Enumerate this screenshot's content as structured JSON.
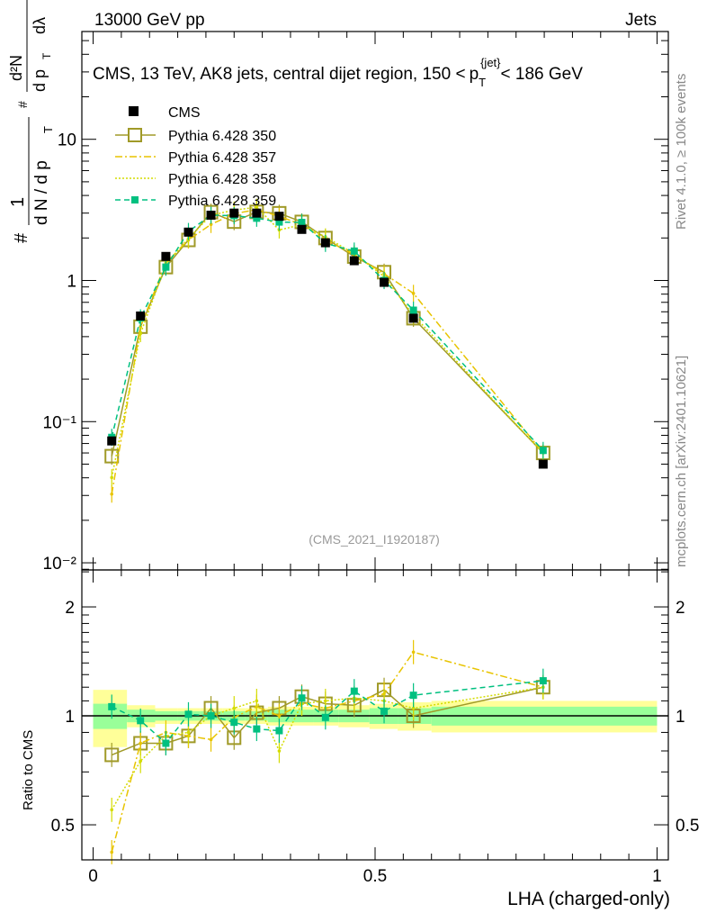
{
  "header": {
    "left": "13000 GeV pp",
    "right": "Jets"
  },
  "side_labels": {
    "rivet": "Rivet 4.1.0, ≥ 100k events",
    "mcplots": "mcplots.cern.ch [arXiv:2401.10621]"
  },
  "watermark": "(CMS_2021_I1920187)",
  "colors": {
    "cms": "#000000",
    "p350": "#a09a28",
    "p357": "#e8c400",
    "p358": "#d4dc00",
    "p359": "#00c080",
    "band_inner": "#99ff99",
    "band_outer": "#ffff99"
  },
  "chart_data": {
    "type": "line",
    "title": "CMS, 13 TeV, AK8 jets, central dijet region, 150 < p_T^{jet} < 186 GeV",
    "title_parts": {
      "pre": "CMS, 13 TeV, AK8 jets, central dijet region, 150 <",
      "p": "p",
      "sub": "T",
      "sup": "{jet}",
      "post": "< 186 GeV"
    },
    "ylabel": "1/N dN/dp_T  d²N/dp_T dλ",
    "ylabel_parts": {
      "one": "1",
      "den": "d N / d p",
      "T": "T",
      "num": "d²N",
      "den2": "d p",
      "dl": "dλ",
      "hash": "#"
    },
    "xlabel": "LHA (charged-only)",
    "ratio_ylabel": "Ratio to CMS",
    "xlim": [
      -0.02,
      1.02
    ],
    "ylim": [
      0.0089,
      58
    ],
    "ratio_ylim": [
      0.4,
      2.53
    ],
    "yscale": "log",
    "x_ticks": [
      {
        "v": 0,
        "label": "0"
      },
      {
        "v": 0.5,
        "label": "0.5"
      },
      {
        "v": 1,
        "label": "1"
      }
    ],
    "y_ticks": [
      {
        "v": 0.01,
        "label": "10⁻²"
      },
      {
        "v": 0.1,
        "label": "10⁻¹"
      },
      {
        "v": 1,
        "label": "1"
      },
      {
        "v": 10,
        "label": "10"
      }
    ],
    "ratio_ticks": [
      {
        "v": 0.5,
        "label": "0.5"
      },
      {
        "v": 1,
        "label": "1"
      },
      {
        "v": 2,
        "label": "2"
      }
    ],
    "legend_position": "top-left",
    "x": [
      0.033,
      0.084,
      0.129,
      0.169,
      0.209,
      0.25,
      0.29,
      0.33,
      0.37,
      0.412,
      0.463,
      0.516,
      0.568,
      0.798
    ],
    "bin_edges": [
      0,
      0.06,
      0.11,
      0.15,
      0.19,
      0.23,
      0.27,
      0.31,
      0.35,
      0.39,
      0.435,
      0.49,
      0.54,
      0.6,
      1.0
    ],
    "band_inner": [
      0.08,
      0.04,
      0.03,
      0.03,
      0.03,
      0.03,
      0.03,
      0.04,
      0.04,
      0.04,
      0.04,
      0.05,
      0.05,
      0.06
    ],
    "band_outer": [
      0.18,
      0.07,
      0.05,
      0.05,
      0.05,
      0.05,
      0.05,
      0.06,
      0.06,
      0.06,
      0.07,
      0.08,
      0.09,
      0.1
    ],
    "cms": {
      "name": "CMS",
      "values": [
        0.073,
        0.56,
        1.48,
        2.2,
        2.9,
        3.0,
        3.0,
        2.85,
        2.3,
        1.85,
        1.38,
        0.97,
        0.54,
        0.05
      ]
    },
    "series": [
      {
        "name": "Pythia 6.428 350",
        "key": "p350",
        "style": "solid",
        "marker": "open-square",
        "ratio": [
          0.78,
          0.84,
          0.84,
          0.88,
          1.05,
          0.87,
          1.02,
          1.05,
          1.13,
          1.08,
          1.07,
          1.18,
          1.0,
          1.2
        ]
      },
      {
        "name": "Pythia 6.428 357",
        "key": "p357",
        "style": "dashdot",
        "marker": "none",
        "ratio": [
          0.42,
          0.84,
          0.9,
          0.88,
          0.86,
          0.99,
          1.06,
          1.0,
          1.08,
          1.05,
          1.1,
          1.15,
          1.5,
          1.2
        ]
      },
      {
        "name": "Pythia 6.428 358",
        "key": "p358",
        "style": "dotted",
        "marker": "none",
        "ratio": [
          0.55,
          0.75,
          0.88,
          0.9,
          1.0,
          1.05,
          1.1,
          0.8,
          1.08,
          1.1,
          1.12,
          1.1,
          1.05,
          1.2
        ]
      },
      {
        "name": "Pythia 6.428 359",
        "key": "p359",
        "style": "dashed",
        "marker": "filled-square",
        "ratio": [
          1.06,
          0.97,
          0.84,
          1.01,
          1.0,
          0.96,
          0.92,
          0.91,
          1.12,
          0.99,
          1.17,
          1.03,
          1.14,
          1.25
        ]
      }
    ]
  }
}
